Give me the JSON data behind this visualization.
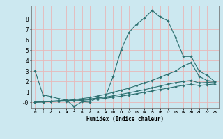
{
  "xlabel": "Humidex (Indice chaleur)",
  "bg_color": "#cce8f0",
  "grid_color": "#e8b8b8",
  "line_color": "#2d7070",
  "xlim": [
    -0.5,
    23.5
  ],
  "ylim": [
    -0.6,
    9.3
  ],
  "xticks": [
    0,
    1,
    2,
    3,
    4,
    5,
    6,
    7,
    8,
    9,
    10,
    11,
    12,
    13,
    14,
    15,
    16,
    17,
    18,
    19,
    20,
    21,
    22,
    23
  ],
  "ytick_vals": [
    0,
    1,
    2,
    3,
    4,
    5,
    6,
    7,
    8
  ],
  "ytick_labels": [
    "-0",
    "1",
    "2",
    "3",
    "4",
    "5",
    "6",
    "7",
    "8"
  ],
  "series": [
    {
      "x": [
        0,
        1,
        2,
        3,
        4,
        5,
        6,
        7,
        8,
        9,
        10,
        11,
        12,
        13,
        14,
        15,
        16,
        17,
        18,
        19,
        20,
        21,
        22,
        23
      ],
      "y": [
        3.0,
        0.7,
        0.55,
        0.35,
        0.2,
        -0.4,
        0.05,
        0.0,
        0.45,
        0.5,
        2.5,
        5.0,
        6.7,
        7.5,
        8.1,
        8.85,
        8.2,
        7.85,
        6.2,
        4.4,
        4.4,
        3.0,
        2.6,
        2.0
      ]
    },
    {
      "x": [
        0,
        1,
        2,
        3,
        4,
        5,
        6,
        7,
        8,
        9,
        10,
        11,
        12,
        13,
        14,
        15,
        16,
        17,
        18,
        19,
        20,
        21,
        22,
        23
      ],
      "y": [
        0.0,
        0.05,
        0.1,
        0.15,
        0.18,
        0.25,
        0.35,
        0.45,
        0.6,
        0.75,
        0.95,
        1.15,
        1.35,
        1.6,
        1.85,
        2.1,
        2.4,
        2.7,
        3.0,
        3.5,
        3.8,
        2.5,
        2.1,
        2.0
      ]
    },
    {
      "x": [
        0,
        1,
        2,
        3,
        4,
        5,
        6,
        7,
        8,
        9,
        10,
        11,
        12,
        13,
        14,
        15,
        16,
        17,
        18,
        19,
        20,
        21,
        22,
        23
      ],
      "y": [
        0.0,
        0.02,
        0.07,
        0.12,
        0.15,
        0.18,
        0.25,
        0.32,
        0.4,
        0.5,
        0.62,
        0.75,
        0.9,
        1.05,
        1.2,
        1.38,
        1.55,
        1.72,
        1.88,
        2.0,
        2.1,
        1.85,
        1.9,
        1.95
      ]
    },
    {
      "x": [
        0,
        1,
        2,
        3,
        4,
        5,
        6,
        7,
        8,
        9,
        10,
        11,
        12,
        13,
        14,
        15,
        16,
        17,
        18,
        19,
        20,
        21,
        22,
        23
      ],
      "y": [
        0.0,
        0.02,
        0.05,
        0.08,
        0.1,
        0.12,
        0.18,
        0.24,
        0.3,
        0.38,
        0.48,
        0.58,
        0.7,
        0.82,
        0.95,
        1.08,
        1.22,
        1.35,
        1.5,
        1.62,
        1.72,
        1.6,
        1.68,
        1.75
      ]
    }
  ]
}
